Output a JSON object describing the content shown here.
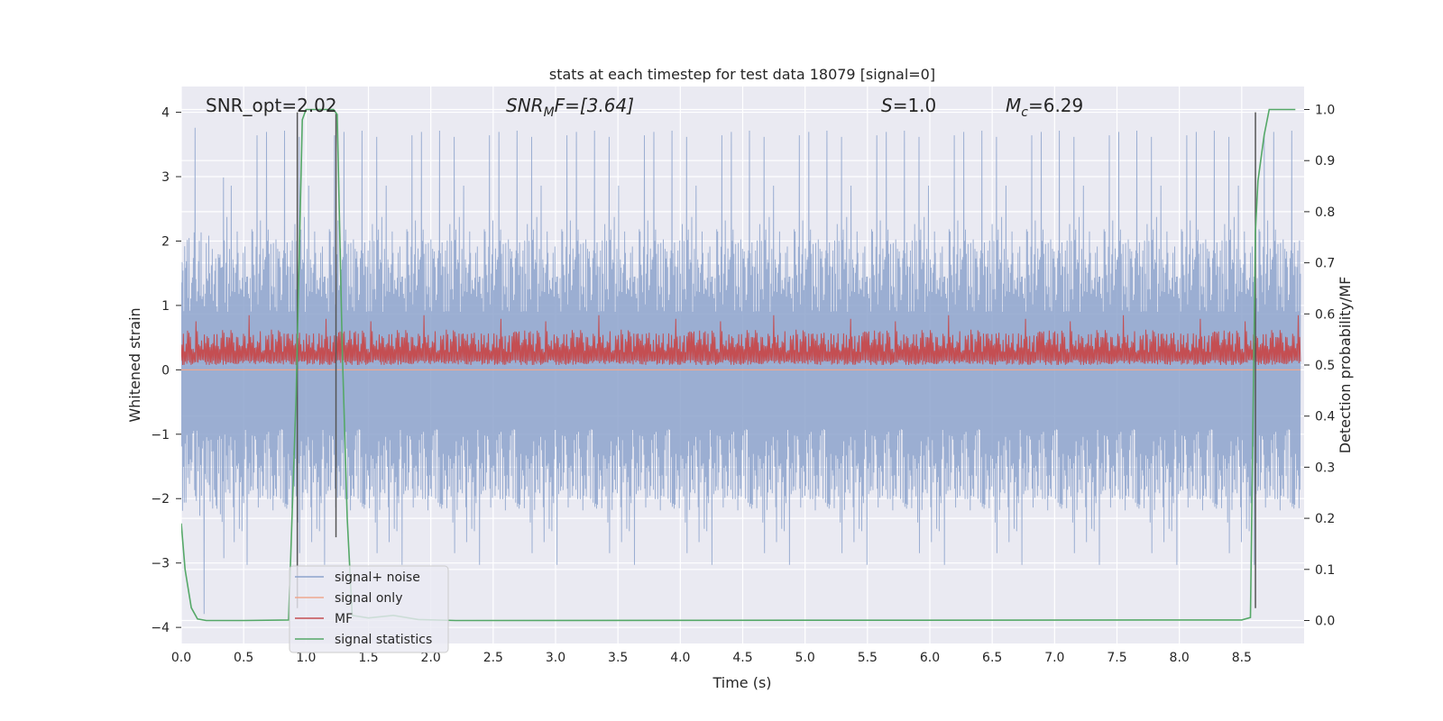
{
  "chart_data": {
    "type": "line",
    "title": "stats at each timestep for test data 18079 [signal=0]",
    "xlabel": "Time (s)",
    "ylabel": "Whitened strain",
    "ylabel_right": "Detection probability/MF",
    "xlim": [
      0,
      9
    ],
    "ylim": [
      -4.25,
      4.4
    ],
    "ylim_right": [
      -0.045,
      1.045
    ],
    "xticks": [
      "0.0",
      "0.5",
      "1.0",
      "1.5",
      "2.0",
      "2.5",
      "3.0",
      "3.5",
      "4.0",
      "4.5",
      "5.0",
      "5.5",
      "6.0",
      "6.5",
      "7.0",
      "7.5",
      "8.0",
      "8.5"
    ],
    "yticks": [
      "4",
      "3",
      "2",
      "1",
      "0",
      "−1",
      "−2",
      "−3",
      "−4"
    ],
    "yticks_right": [
      "1.0",
      "0.9",
      "0.8",
      "0.7",
      "0.6",
      "0.5",
      "0.4",
      "0.3",
      "0.2",
      "0.1",
      "0.0"
    ],
    "grid": true,
    "legend_position": "lower-left",
    "annotations": {
      "snr_opt": "SNR_opt=2.02",
      "snr_mf_main": "SNR",
      "snr_mf_sub": "M",
      "snr_mf_rest": "F=[3.64]",
      "s_main": "S",
      "s_rest": "=1.0",
      "mc_main": "M",
      "mc_sub": "c",
      "mc_rest": "=6.29"
    },
    "series": [
      {
        "name": "signal+ noise",
        "color": "#8da3cc",
        "axis": "left",
        "description_range": [
          -3.8,
          4.0
        ],
        "envelope": {
          "upper_typical": 2.2,
          "lower_typical": -2.2
        }
      },
      {
        "name": "signal only",
        "color": "#eea78f",
        "axis": "left",
        "values_note": "flat zero"
      },
      {
        "name": "MF",
        "color": "#c44e52",
        "axis": "right",
        "envelope": {
          "lower": 0.5,
          "upper_typical": 0.57,
          "peak": 0.6
        }
      },
      {
        "name": "signal statistics",
        "color": "#55a868",
        "axis": "right",
        "x": [
          0.0,
          0.03,
          0.08,
          0.13,
          0.2,
          0.5,
          0.86,
          0.92,
          0.97,
          1.0,
          1.22,
          1.25,
          1.29,
          1.33,
          1.37,
          1.5,
          1.7,
          1.9,
          2.2,
          8.5,
          8.57,
          8.61,
          8.63,
          8.68,
          8.72,
          8.93
        ],
        "y": [
          0.19,
          0.1,
          0.025,
          0.003,
          0.0,
          0.0,
          0.001,
          0.44,
          0.98,
          1.0,
          1.0,
          0.99,
          0.53,
          0.2,
          0.01,
          0.005,
          0.01,
          0.002,
          0.0,
          0.001,
          0.006,
          0.76,
          0.86,
          0.95,
          1.0,
          1.0
        ]
      }
    ],
    "vertical_markers": [
      {
        "color": "#555555",
        "x": 0.93,
        "y_range": [
          -3.7,
          4.0
        ]
      },
      {
        "color": "#555555",
        "x": 1.24,
        "y_range": [
          -2.6,
          4.0
        ]
      },
      {
        "color": "#555555",
        "x": 8.61,
        "y_range": [
          -3.7,
          4.0
        ]
      }
    ],
    "colors": {
      "plot_background": "#eaeaf2",
      "grid": "#ffffff",
      "text": "#262626"
    }
  }
}
